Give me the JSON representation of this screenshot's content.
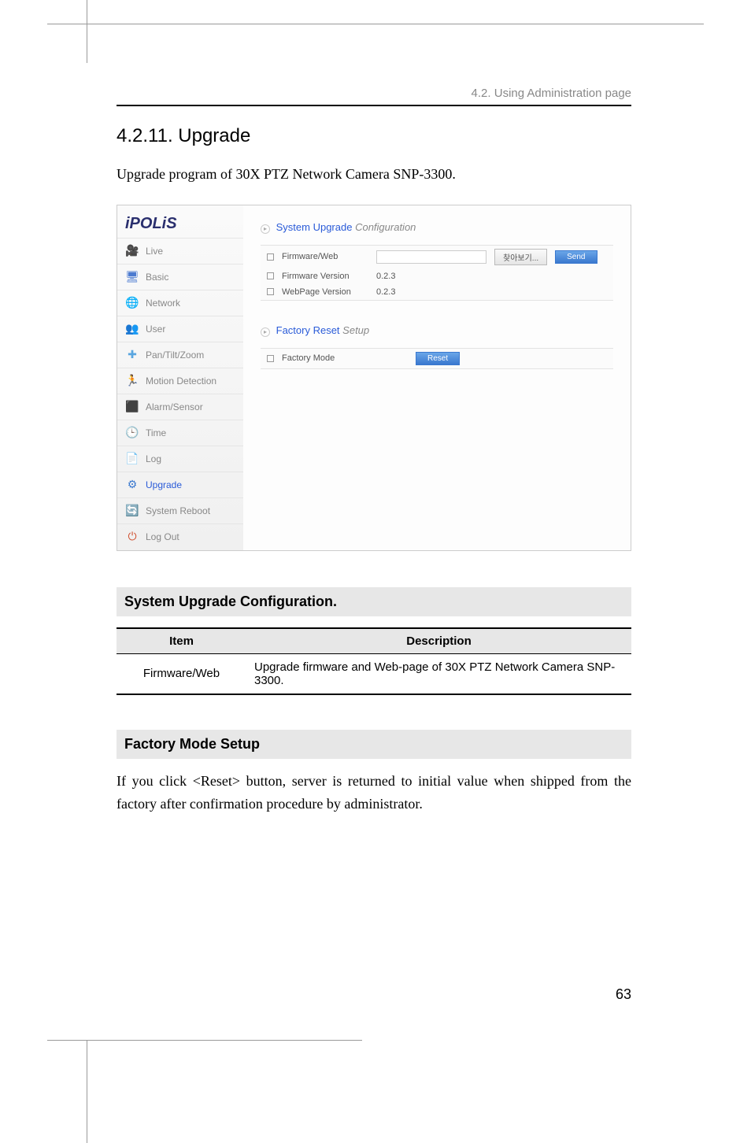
{
  "header": "4.2. Using Administration page",
  "title": "4.2.11. Upgrade",
  "intro": "Upgrade program of 30X PTZ Network Camera SNP-3300.",
  "ui": {
    "logo": "iPOLiS",
    "sidebar": [
      {
        "label": "Live",
        "glyph": "🎥",
        "color": "#4c7bd0"
      },
      {
        "label": "Basic",
        "glyph": "🖥",
        "color": "#4c7bd0"
      },
      {
        "label": "Network",
        "glyph": "🌐",
        "color": "#a0a0a0"
      },
      {
        "label": "User",
        "glyph": "👥",
        "color": "#e0a030"
      },
      {
        "label": "Pan/Tilt/Zoom",
        "glyph": "✚",
        "color": "#5aa6e0"
      },
      {
        "label": "Motion Detection",
        "glyph": "🏃",
        "color": "#7a4a2a"
      },
      {
        "label": "Alarm/Sensor",
        "glyph": "⬛",
        "color": "#808080"
      },
      {
        "label": "Time",
        "glyph": "🕒",
        "color": "#a0a0a0"
      },
      {
        "label": "Log",
        "glyph": "📄",
        "color": "#a0a0a0"
      },
      {
        "label": "Upgrade",
        "glyph": "⚙",
        "color": "#3a78cf",
        "active": true
      },
      {
        "label": "System Reboot",
        "glyph": "🔄",
        "color": "#4c7bd0"
      },
      {
        "label": "Log Out",
        "glyph": "⏻",
        "color": "#d05030"
      }
    ],
    "sec1": {
      "title": "System Upgrade",
      "sub": "Configuration"
    },
    "rows1": [
      {
        "label": "Firmware/Web",
        "value": "",
        "browse": "찾아보기...",
        "send": "Send"
      },
      {
        "label": "Firmware Version",
        "value": "0.2.3"
      },
      {
        "label": "WebPage Version",
        "value": "0.2.3"
      }
    ],
    "sec2": {
      "title": "Factory Reset",
      "sub": "Setup"
    },
    "rows2": [
      {
        "label": "Factory Mode",
        "reset": "Reset"
      }
    ]
  },
  "section1": {
    "heading": "System Upgrade Configuration.",
    "table": {
      "headers": [
        "Item",
        "Description"
      ],
      "rows": [
        [
          "Firmware/Web",
          "Upgrade firmware and Web-page of 30X PTZ Network Camera SNP-3300."
        ]
      ]
    }
  },
  "section2": {
    "heading": "Factory Mode Setup",
    "text": "If you click <Reset> button, server is returned to initial value when shipped from the factory after confirmation procedure by administrator."
  },
  "pagenum": "63"
}
